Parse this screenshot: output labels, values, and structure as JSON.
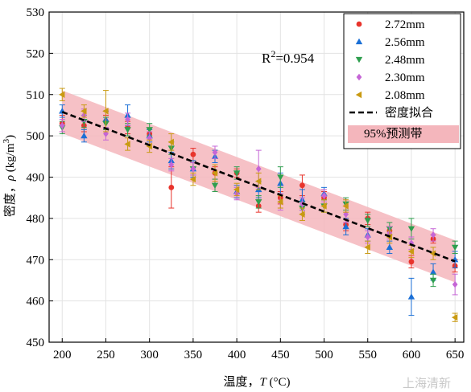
{
  "chart_data": {
    "type": "scatter",
    "xlabel_prefix": "温度，",
    "xlabel_var": "T",
    "xlabel_unit": " (°C)",
    "ylabel_prefix": "密度，",
    "ylabel_var": "ρ",
    "ylabel_unit_prefix": " (kg/m",
    "ylabel_unit_sup": "3",
    "ylabel_unit_suffix": ")",
    "xlim": [
      185,
      660
    ],
    "ylim": [
      450,
      530
    ],
    "xticks": [
      200,
      250,
      300,
      350,
      400,
      450,
      500,
      550,
      600,
      650
    ],
    "yticks": [
      450,
      460,
      470,
      480,
      490,
      500,
      510,
      520,
      530
    ],
    "grid": true,
    "legend_position": "top-right",
    "annotation": {
      "prefix": "R",
      "sup": "2",
      "suffix": "=0.954"
    },
    "fit": {
      "label": "密度拟合",
      "x": [
        200,
        650
      ],
      "y": [
        505.8,
        469.6
      ],
      "color": "#000000"
    },
    "band": {
      "label": "95%预测带",
      "x": [
        200,
        650
      ],
      "upper": [
        511.0,
        474.7
      ],
      "lower": [
        500.6,
        464.5
      ],
      "color": "#f4b6bc"
    },
    "series": [
      {
        "name": "2.72mm",
        "marker": "circle",
        "color": "#e8342c",
        "x": [
          200,
          225,
          250,
          275,
          300,
          325,
          350,
          375,
          400,
          425,
          450,
          475,
          500,
          525,
          550,
          575,
          600,
          625,
          650
        ],
        "y": [
          503.0,
          502.5,
          503.5,
          502.0,
          500.5,
          487.5,
          495.5,
          491.0,
          491.0,
          483.0,
          485.0,
          488.0,
          485.0,
          478.5,
          480.0,
          477.0,
          469.5,
          475.0,
          468.5
        ],
        "err": [
          2.0,
          1.5,
          1.5,
          1.5,
          1.5,
          5.0,
          1.5,
          1.5,
          1.0,
          1.5,
          1.5,
          2.5,
          1.5,
          1.5,
          1.5,
          1.0,
          1.5,
          1.0,
          1.5
        ]
      },
      {
        "name": "2.56mm",
        "marker": "triangle-up",
        "color": "#1a6fd6",
        "x": [
          200,
          225,
          250,
          275,
          300,
          325,
          350,
          375,
          400,
          425,
          450,
          475,
          500,
          525,
          550,
          575,
          600,
          625,
          650
        ],
        "y": [
          506.0,
          500.0,
          504.0,
          505.0,
          500.0,
          494.0,
          492.0,
          495.0,
          486.5,
          487.0,
          488.5,
          484.5,
          486.0,
          478.0,
          476.0,
          473.0,
          461.0,
          467.0,
          470.0
        ],
        "err": [
          1.5,
          1.5,
          2.0,
          2.5,
          1.5,
          2.0,
          2.0,
          1.5,
          1.5,
          2.0,
          2.5,
          2.5,
          1.5,
          2.0,
          1.5,
          1.5,
          4.5,
          2.0,
          2.0
        ]
      },
      {
        "name": "2.48mm",
        "marker": "triangle-down",
        "color": "#2e9e4e",
        "x": [
          200,
          225,
          250,
          275,
          300,
          325,
          350,
          375,
          400,
          425,
          450,
          475,
          500,
          525,
          550,
          575,
          600,
          625,
          650
        ],
        "y": [
          502.0,
          503.5,
          503.0,
          501.5,
          501.5,
          497.0,
          492.0,
          488.0,
          491.0,
          484.0,
          490.0,
          482.5,
          483.0,
          483.5,
          479.5,
          477.5,
          477.5,
          465.0,
          473.0
        ],
        "err": [
          1.5,
          1.5,
          1.5,
          1.5,
          1.5,
          1.5,
          1.5,
          1.5,
          1.5,
          1.5,
          2.5,
          1.5,
          1.5,
          1.5,
          1.5,
          1.5,
          2.5,
          1.5,
          1.5
        ]
      },
      {
        "name": "2.30mm",
        "marker": "diamond",
        "color": "#c565d6",
        "x": [
          200,
          225,
          250,
          275,
          300,
          325,
          350,
          375,
          400,
          425,
          450,
          475,
          500,
          525,
          550,
          575,
          600,
          625,
          650
        ],
        "y": [
          502.5,
          505.0,
          500.5,
          504.0,
          499.5,
          493.0,
          492.0,
          496.0,
          486.0,
          492.0,
          484.0,
          483.5,
          485.5,
          481.0,
          475.5,
          476.5,
          474.0,
          476.0,
          464.0
        ],
        "err": [
          1.5,
          1.5,
          1.5,
          1.5,
          1.5,
          1.5,
          1.5,
          1.5,
          1.5,
          4.5,
          2.0,
          1.5,
          1.5,
          2.0,
          1.5,
          1.5,
          1.5,
          1.5,
          2.5
        ]
      },
      {
        "name": "2.08mm",
        "marker": "triangle-left",
        "color": "#c99a12",
        "x": [
          200,
          225,
          250,
          275,
          300,
          325,
          350,
          375,
          400,
          425,
          450,
          475,
          500,
          525,
          550,
          575,
          600,
          625,
          650
        ],
        "y": [
          510.0,
          506.0,
          506.0,
          498.0,
          497.5,
          498.5,
          489.5,
          491.0,
          487.0,
          489.0,
          484.0,
          481.0,
          483.0,
          483.0,
          473.0,
          475.5,
          472.0,
          471.5,
          456.0
        ],
        "err": [
          1.5,
          1.5,
          5.0,
          1.5,
          1.5,
          2.0,
          1.5,
          2.0,
          1.5,
          2.0,
          1.5,
          1.5,
          1.5,
          1.5,
          1.5,
          1.5,
          1.5,
          1.5,
          1.0
        ]
      }
    ]
  },
  "watermark": "上海清新"
}
